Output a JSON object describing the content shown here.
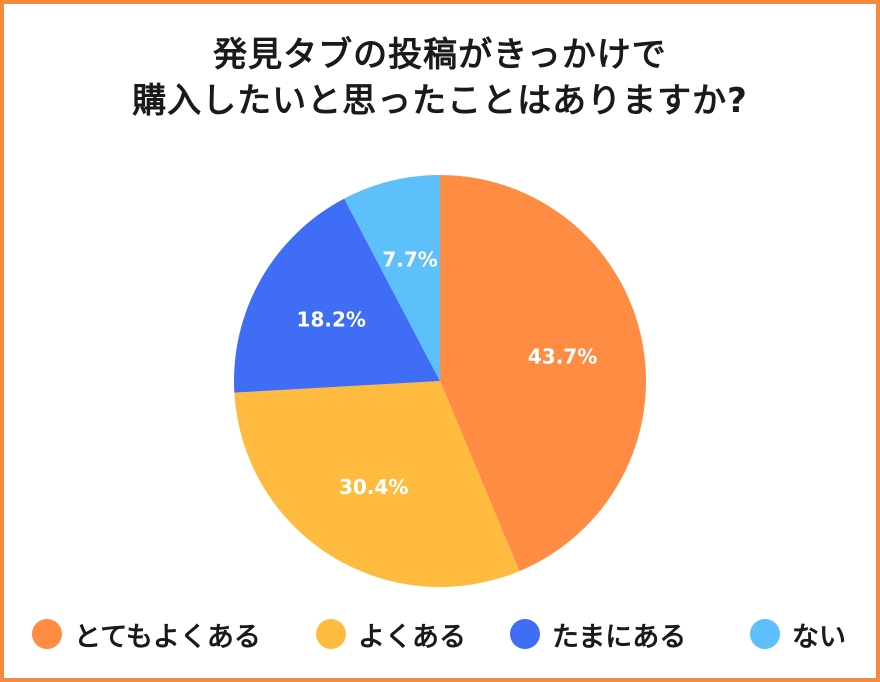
{
  "chart_data": {
    "type": "pie",
    "title_lines": [
      "発見タブの投稿がきっかけで",
      "購入したいと思ったことはありますか?"
    ],
    "categories": [
      "とてもよくある",
      "よくある",
      "たまにある",
      "ない"
    ],
    "values": [
      43.7,
      30.4,
      18.2,
      7.7
    ],
    "data_labels": [
      "43.7%",
      "30.4%",
      "18.2%",
      "7.7%"
    ],
    "colors": [
      "#ff8c42",
      "#ffbb40",
      "#3f6df5",
      "#5ec0fb"
    ],
    "legend_position": "bottom"
  },
  "frame_color": "#f58a3f"
}
